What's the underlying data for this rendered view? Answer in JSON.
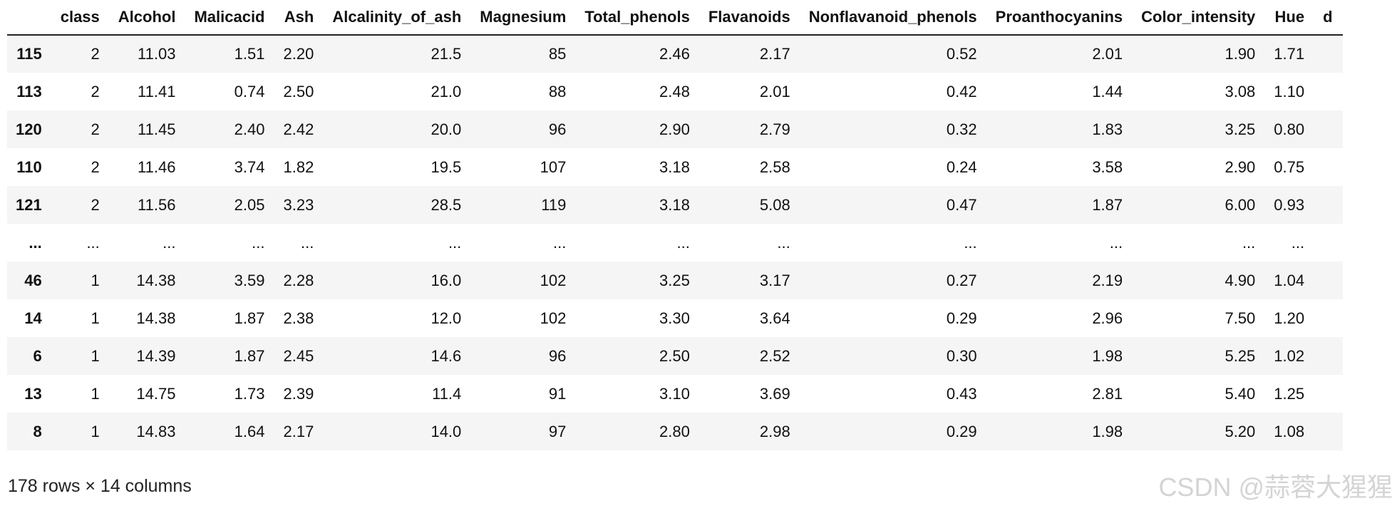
{
  "table": {
    "index_header": "",
    "columns": [
      "class",
      "Alcohol",
      "Malicacid",
      "Ash",
      "Alcalinity_of_ash",
      "Magnesium",
      "Total_phenols",
      "Flavanoids",
      "Nonflavanoid_phenols",
      "Proanthocyanins",
      "Color_intensity",
      "Hue",
      "d"
    ],
    "rows": [
      {
        "index": "115",
        "values": [
          "2",
          "11.03",
          "1.51",
          "2.20",
          "21.5",
          "85",
          "2.46",
          "2.17",
          "0.52",
          "2.01",
          "1.90",
          "1.71",
          ""
        ]
      },
      {
        "index": "113",
        "values": [
          "2",
          "11.41",
          "0.74",
          "2.50",
          "21.0",
          "88",
          "2.48",
          "2.01",
          "0.42",
          "1.44",
          "3.08",
          "1.10",
          ""
        ]
      },
      {
        "index": "120",
        "values": [
          "2",
          "11.45",
          "2.40",
          "2.42",
          "20.0",
          "96",
          "2.90",
          "2.79",
          "0.32",
          "1.83",
          "3.25",
          "0.80",
          ""
        ]
      },
      {
        "index": "110",
        "values": [
          "2",
          "11.46",
          "3.74",
          "1.82",
          "19.5",
          "107",
          "3.18",
          "2.58",
          "0.24",
          "3.58",
          "2.90",
          "0.75",
          ""
        ]
      },
      {
        "index": "121",
        "values": [
          "2",
          "11.56",
          "2.05",
          "3.23",
          "28.5",
          "119",
          "3.18",
          "5.08",
          "0.47",
          "1.87",
          "6.00",
          "0.93",
          ""
        ]
      },
      {
        "index": "...",
        "values": [
          "...",
          "...",
          "...",
          "...",
          "...",
          "...",
          "...",
          "...",
          "...",
          "...",
          "...",
          "...",
          ""
        ]
      },
      {
        "index": "46",
        "values": [
          "1",
          "14.38",
          "3.59",
          "2.28",
          "16.0",
          "102",
          "3.25",
          "3.17",
          "0.27",
          "2.19",
          "4.90",
          "1.04",
          ""
        ]
      },
      {
        "index": "14",
        "values": [
          "1",
          "14.38",
          "1.87",
          "2.38",
          "12.0",
          "102",
          "3.30",
          "3.64",
          "0.29",
          "2.96",
          "7.50",
          "1.20",
          ""
        ]
      },
      {
        "index": "6",
        "values": [
          "1",
          "14.39",
          "1.87",
          "2.45",
          "14.6",
          "96",
          "2.50",
          "2.52",
          "0.30",
          "1.98",
          "5.25",
          "1.02",
          ""
        ]
      },
      {
        "index": "13",
        "values": [
          "1",
          "14.75",
          "1.73",
          "2.39",
          "11.4",
          "91",
          "3.10",
          "3.69",
          "0.43",
          "2.81",
          "5.40",
          "1.25",
          ""
        ]
      },
      {
        "index": "8",
        "values": [
          "1",
          "14.83",
          "1.64",
          "2.17",
          "14.0",
          "97",
          "2.80",
          "2.98",
          "0.29",
          "1.98",
          "5.20",
          "1.08",
          ""
        ]
      }
    ]
  },
  "shape_text": "178 rows × 14 columns",
  "watermark": "CSDN @蒜蓉大猩猩"
}
